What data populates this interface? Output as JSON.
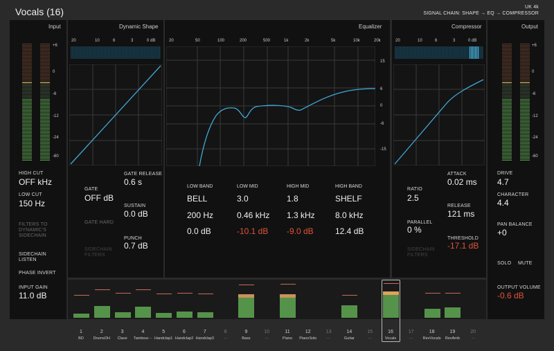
{
  "app": {
    "title": "Vocals (16)",
    "header_line1": "UK 4k",
    "header_line2": "SIGNAL CHAIN: SHAPE → EQ → COMPRESSOR"
  },
  "panels": {
    "input": "Input",
    "dynamic_shape": "Dynamic Shape",
    "equalizer": "Equalizer",
    "compressor": "Compressor",
    "output": "Output"
  },
  "meter_scale": [
    "+6",
    "0",
    "-6",
    "-12",
    "-24",
    "-60"
  ],
  "gate_scale": [
    "20",
    "10",
    "6",
    "3",
    "0 dB"
  ],
  "eq_freqs": [
    "20",
    "50",
    "100",
    "200",
    "500",
    "1k",
    "2k",
    "5k",
    "10k",
    "20k"
  ],
  "eq_gain_scale": [
    "15",
    "6",
    "0",
    "-6",
    "-15"
  ],
  "input_params": {
    "high_cut_label": "HIGH CUT",
    "high_cut_value": "OFF kHz",
    "low_cut_label": "LOW CUT",
    "low_cut_value": "150 Hz",
    "filters_to_sidechain": "FILTERS TO DYNAMIC'S SIDECHAIN",
    "sidechain_listen": "SIDECHAIN LISTEN",
    "phase_invert": "PHASE INVERT",
    "input_gain_label": "INPUT GAIN",
    "input_gain_value": "11.0 dB"
  },
  "shape_params": {
    "gate_label": "GATE",
    "gate_value": "OFF dB",
    "gate_release_label": "GATE RELEASE",
    "gate_release_value": "0.6 s",
    "sustain_label": "SUSTAIN",
    "sustain_value": "0.0 dB",
    "gate_hard": "GATE HARD",
    "punch_label": "PUNCH",
    "punch_value": "0.7 dB",
    "sidechain_filters": "SIDECHAIN FILTERS"
  },
  "eq_bands": [
    {
      "head": "LOW BAND",
      "type": "BELL",
      "freq": "200 Hz",
      "gain": "0.0 dB",
      "gain_red": false
    },
    {
      "head": "LOW MID",
      "type": "3.0",
      "freq": "0.46 kHz",
      "gain": "-10.1 dB",
      "gain_red": true
    },
    {
      "head": "HIGH MID",
      "type": "1.8",
      "freq": "1.3 kHz",
      "gain": "-9.0 dB",
      "gain_red": true
    },
    {
      "head": "HIGH BAND",
      "type": "SHELF",
      "freq": "8.0 kHz",
      "gain": "12.4 dB",
      "gain_red": false
    }
  ],
  "comp_params": {
    "ratio_label": "RATIO",
    "ratio_value": "2.5",
    "attack_label": "ATTACK",
    "attack_value": "0.02 ms",
    "parallel_label": "PARALLEL",
    "parallel_value": "0 %",
    "release_label": "RELEASE",
    "release_value": "121 ms",
    "sidechain_filters": "SIDECHAIN FILTERS",
    "threshold_label": "THRESHOLD",
    "threshold_value": "-17.1 dB"
  },
  "output_params": {
    "drive_label": "DRIVE",
    "drive_value": "4.7",
    "character_label": "CHARACTER",
    "character_value": "4.4",
    "pan_label": "PAN BALANCE",
    "pan_value": "+0",
    "solo": "SOLO",
    "mute": "MUTE",
    "output_volume_label": "OUTPUT VOLUME",
    "output_volume_value": "-0.6 dB"
  },
  "channels": [
    {
      "num": "1",
      "name": "BD",
      "level": 0.14,
      "peak": 0.55,
      "active": true
    },
    {
      "num": "2",
      "name": "DrumsOH",
      "level": 0.38,
      "peak": 0.72,
      "active": true
    },
    {
      "num": "3",
      "name": "Clave",
      "level": 0.17,
      "peak": 0.6,
      "active": true
    },
    {
      "num": "4",
      "name": "Tambour···",
      "level": 0.35,
      "peak": 0.72,
      "active": true
    },
    {
      "num": "5",
      "name": "Handclap1",
      "level": 0.15,
      "peak": 0.58,
      "active": true
    },
    {
      "num": "6",
      "name": "Handclap2",
      "level": 0.2,
      "peak": 0.6,
      "active": true
    },
    {
      "num": "7",
      "name": "Handclap3",
      "level": 0.17,
      "peak": 0.58,
      "active": true
    },
    {
      "num": "8",
      "name": "—",
      "level": 0,
      "peak": 0,
      "active": false
    },
    {
      "num": "9",
      "name": "Bass",
      "level": 0.75,
      "peak": 0.88,
      "active": true
    },
    {
      "num": "10",
      "name": "—",
      "level": 0,
      "peak": 0,
      "active": false
    },
    {
      "num": "11",
      "name": "Piano",
      "level": 0.75,
      "peak": 0.9,
      "active": true
    },
    {
      "num": "12",
      "name": "PianoSolo",
      "level": 0,
      "peak": 0,
      "active": true
    },
    {
      "num": "13",
      "name": "—",
      "level": 0,
      "peak": 0,
      "active": false
    },
    {
      "num": "14",
      "name": "Guitar",
      "level": 0.4,
      "peak": 0.55,
      "active": true
    },
    {
      "num": "15",
      "name": "—",
      "level": 0,
      "peak": 0,
      "active": false
    },
    {
      "num": "16",
      "name": "Vocals",
      "level": 0.82,
      "peak": 0.92,
      "active": true
    },
    {
      "num": "17",
      "name": "—",
      "level": 0,
      "peak": 0,
      "active": false
    },
    {
      "num": "18",
      "name": "RevVocals",
      "level": 0.28,
      "peak": 0.6,
      "active": true
    },
    {
      "num": "19",
      "name": "RevAmb",
      "level": 0.33,
      "peak": 0.6,
      "active": true
    },
    {
      "num": "20",
      "name": "—",
      "level": 0,
      "peak": 0,
      "active": false
    }
  ],
  "colors": {
    "accent_blue": "#3fa9d8",
    "meter_green": "#55934a",
    "meter_red": "#b0543d",
    "meter_yellow": "#f0d36a",
    "value_red": "#e0533a",
    "selected_fill": "#e0a25a"
  }
}
